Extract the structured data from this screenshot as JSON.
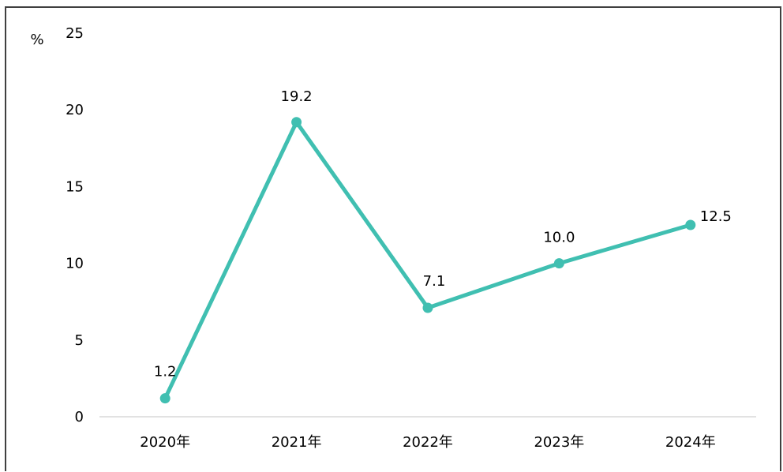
{
  "chart_data": {
    "type": "line",
    "categories": [
      "2020年",
      "2021年",
      "2022年",
      "2023年",
      "2024年"
    ],
    "series": [
      {
        "values": [
          1.2,
          19.2,
          7.1,
          10.0,
          12.5
        ]
      }
    ],
    "data_labels": [
      "1.2",
      "19.2",
      "7.1",
      "10.0",
      "12.5"
    ],
    "y_unit": "%",
    "ylim": [
      0,
      25
    ],
    "y_ticks": [
      0,
      5,
      10,
      15,
      20,
      25
    ],
    "grid": false,
    "legend": "none",
    "colors": {
      "series": "#40BFB1",
      "axis": "#D9D9D9",
      "frame": "#404040"
    }
  }
}
